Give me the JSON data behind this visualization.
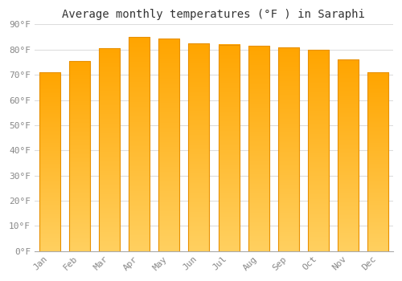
{
  "title": "Average monthly temperatures (°F ) in Saraphi",
  "months": [
    "Jan",
    "Feb",
    "Mar",
    "Apr",
    "May",
    "Jun",
    "Jul",
    "Aug",
    "Sep",
    "Oct",
    "Nov",
    "Dec"
  ],
  "values": [
    71.0,
    75.5,
    80.5,
    85.0,
    84.5,
    82.5,
    82.0,
    81.5,
    81.0,
    80.0,
    76.0,
    71.0
  ],
  "bar_color_top": "#FFA500",
  "bar_color_bottom": "#FFD060",
  "bar_edge_color": "#E89000",
  "ylim": [
    0,
    90
  ],
  "yticks": [
    0,
    10,
    20,
    30,
    40,
    50,
    60,
    70,
    80,
    90
  ],
  "ytick_labels": [
    "0°F",
    "10°F",
    "20°F",
    "30°F",
    "40°F",
    "50°F",
    "60°F",
    "70°F",
    "80°F",
    "90°F"
  ],
  "background_color": "#ffffff",
  "plot_bg_color": "#ffffff",
  "grid_color": "#dddddd",
  "title_fontsize": 10,
  "tick_fontsize": 8,
  "bar_width": 0.7,
  "tick_color": "#888888"
}
